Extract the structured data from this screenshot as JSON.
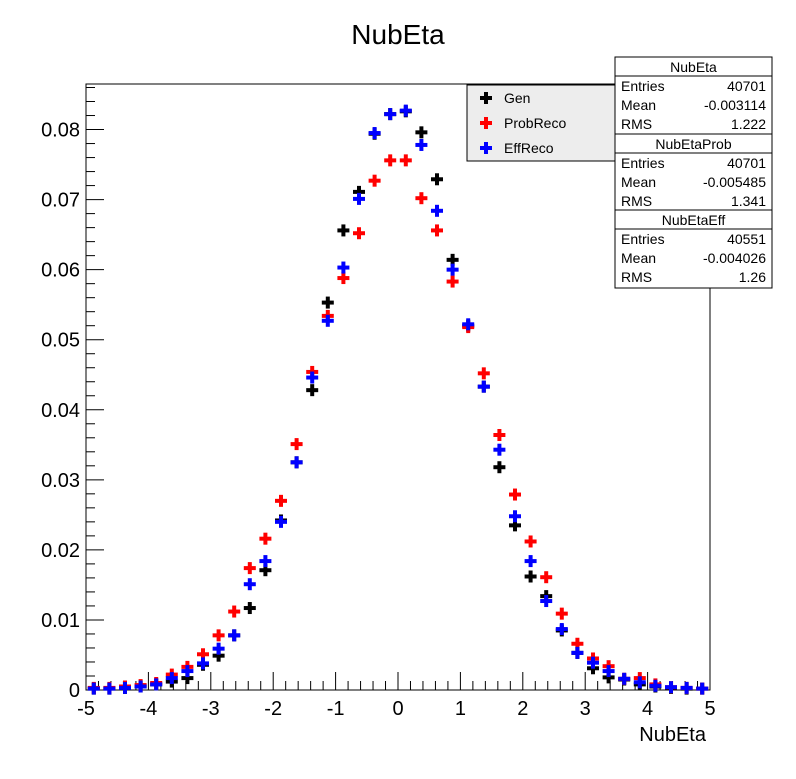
{
  "chart_data": {
    "type": "scatter",
    "title": "NubEta",
    "xlabel": "NubEta",
    "ylabel": "",
    "xlim": [
      -5,
      5
    ],
    "ylim": [
      0,
      0.0865
    ],
    "grid": false,
    "legend_position": "top-right",
    "x_ticks": [
      "-5",
      "-4",
      "-3",
      "-2",
      "-1",
      "0",
      "1",
      "2",
      "3",
      "4",
      "5"
    ],
    "y_ticks": [
      "0",
      "0.01",
      "0.02",
      "0.03",
      "0.04",
      "0.05",
      "0.06",
      "0.07",
      "0.08"
    ],
    "x": [
      -4.875,
      -4.625,
      -4.375,
      -4.125,
      -3.875,
      -3.625,
      -3.375,
      -3.125,
      -2.875,
      -2.625,
      -2.375,
      -2.125,
      -1.875,
      -1.625,
      -1.375,
      -1.125,
      -0.875,
      -0.625,
      -0.375,
      -0.125,
      0.125,
      0.375,
      0.625,
      0.875,
      1.125,
      1.375,
      1.625,
      1.875,
      2.125,
      2.375,
      2.625,
      2.875,
      3.125,
      3.375,
      3.625,
      3.875,
      4.125,
      4.375,
      4.625,
      4.875
    ],
    "series": [
      {
        "name": "Gen",
        "color": "#000000",
        "values": [
          0.0002,
          0.0002,
          0.0003,
          0.0005,
          0.0008,
          0.0012,
          0.0017,
          0.0036,
          0.0049,
          0.0078,
          0.0117,
          0.0171,
          0.0242,
          0.0325,
          0.0428,
          0.0553,
          0.0656,
          0.0711,
          0.0794,
          0.0822,
          0.0826,
          0.0796,
          0.0729,
          0.0614,
          0.052,
          0.0433,
          0.0318,
          0.0235,
          0.0162,
          0.0134,
          0.0085,
          0.0053,
          0.0031,
          0.0018,
          0.0015,
          0.0008,
          0.0005,
          0.0003,
          0.0002,
          0.0002
        ]
      },
      {
        "name": "ProbReco",
        "color": "#ff0000",
        "values": [
          0.0003,
          0.0003,
          0.0005,
          0.0007,
          0.001,
          0.0022,
          0.0033,
          0.0051,
          0.0078,
          0.0112,
          0.0174,
          0.0216,
          0.027,
          0.0351,
          0.0454,
          0.0534,
          0.0588,
          0.0652,
          0.0727,
          0.0756,
          0.0756,
          0.0702,
          0.0656,
          0.0583,
          0.0518,
          0.0452,
          0.0364,
          0.0279,
          0.0212,
          0.0161,
          0.0109,
          0.0066,
          0.0045,
          0.0034,
          0.0016,
          0.0017,
          0.0008,
          0.0004,
          0.0003,
          0.0002
        ]
      },
      {
        "name": "EffReco",
        "color": "#0000ff",
        "values": [
          0.0002,
          0.0002,
          0.0003,
          0.0005,
          0.0008,
          0.0017,
          0.0027,
          0.0038,
          0.0059,
          0.0078,
          0.0151,
          0.0184,
          0.024,
          0.0325,
          0.0446,
          0.0527,
          0.0603,
          0.0701,
          0.0795,
          0.0822,
          0.0827,
          0.0778,
          0.0684,
          0.06,
          0.0522,
          0.0433,
          0.0343,
          0.0248,
          0.0184,
          0.0127,
          0.0087,
          0.0053,
          0.0039,
          0.0027,
          0.0016,
          0.0011,
          0.0006,
          0.0004,
          0.0003,
          0.0002
        ]
      }
    ],
    "stats_boxes": [
      {
        "name": "NubEta",
        "rows": [
          [
            "Entries",
            "40701"
          ],
          [
            "Mean",
            "-0.003114"
          ],
          [
            "RMS",
            "1.222"
          ]
        ]
      },
      {
        "name": "NubEtaProb",
        "rows": [
          [
            "Entries",
            "40701"
          ],
          [
            "Mean",
            "-0.005485"
          ],
          [
            "RMS",
            "1.341"
          ]
        ]
      },
      {
        "name": "NubEtaEff",
        "rows": [
          [
            "Entries",
            "40551"
          ],
          [
            "Mean",
            "-0.004026"
          ],
          [
            "RMS",
            "1.26"
          ]
        ]
      }
    ]
  }
}
